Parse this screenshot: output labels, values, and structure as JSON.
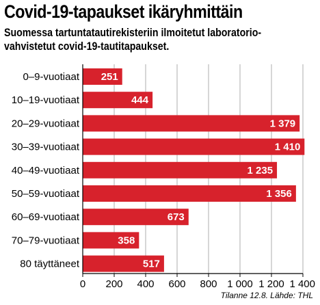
{
  "title": "Covid-19-tapaukset ikäryhmittäin",
  "subtitle_lines": [
    "Suomessa tartuntatautirekisteriin ilmoitetut laboratorio-",
    "vahvistetut covid-19-tautitapaukset."
  ],
  "source": "Tilanne 12.8. Lähde: THL",
  "colors": {
    "bar": "#d7222c",
    "grid": "#999999",
    "text": "#000000"
  },
  "chart_data": {
    "type": "bar",
    "orientation": "horizontal",
    "categories": [
      "0–9-vuotiaat",
      "10–19-vuotiaat",
      "20–29-vuotiaat",
      "30–39-vuotiaat",
      "40–49-vuotiaat",
      "50–59-vuotiaat",
      "60–69-vuotiaat",
      "70–79-vuotiaat",
      "80 täyttäneet"
    ],
    "values": [
      251,
      444,
      1379,
      1410,
      1235,
      1356,
      673,
      358,
      517
    ],
    "value_labels": [
      "251",
      "444",
      "1 379",
      "1 410",
      "1 235",
      "1 356",
      "673",
      "358",
      "517"
    ],
    "xlim": [
      0,
      1400
    ],
    "xticks": [
      0,
      200,
      400,
      600,
      800,
      1000,
      1200,
      1400
    ],
    "xtick_labels": [
      "0",
      "200",
      "400",
      "600",
      "800",
      "1 000",
      "1 200",
      "1 400"
    ],
    "grid": true,
    "title": "Covid-19-tapaukset ikäryhmittäin",
    "xlabel": "",
    "ylabel": ""
  }
}
